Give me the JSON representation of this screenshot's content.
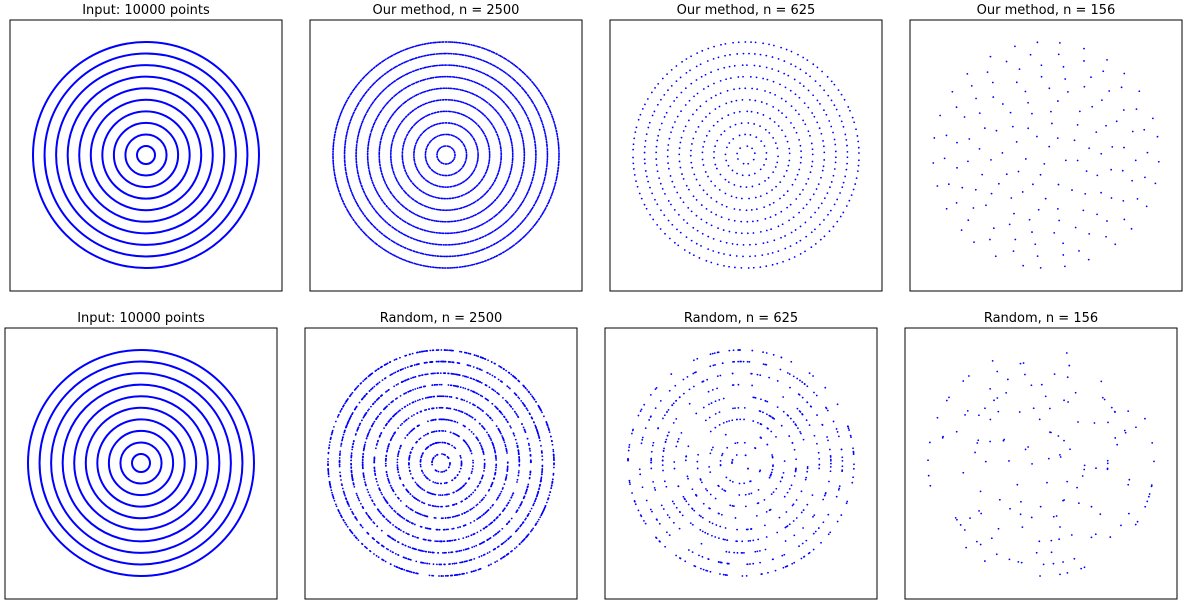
{
  "colors": {
    "points": "#0000ff",
    "frame": "#000000",
    "background": "#ffffff"
  },
  "chart_data": [
    {
      "type": "scatter",
      "title": "Input: 10000 points",
      "n": 10000,
      "rings": 10,
      "xlabel": "",
      "ylabel": "",
      "grid": false
    },
    {
      "type": "scatter",
      "title": "Our method, n = 2500",
      "n": 2500,
      "rings": 10,
      "xlabel": "",
      "ylabel": "",
      "grid": false
    },
    {
      "type": "scatter",
      "title": "Our method, n = 625",
      "n": 625,
      "rings": 10,
      "xlabel": "",
      "ylabel": "",
      "grid": false
    },
    {
      "type": "scatter",
      "title": "Our method, n = 156",
      "n": 156,
      "rings": 10,
      "xlabel": "",
      "ylabel": "",
      "grid": false
    },
    {
      "type": "scatter",
      "title": "Input: 10000 points",
      "n": 10000,
      "rings": 10,
      "xlabel": "",
      "ylabel": "",
      "grid": false
    },
    {
      "type": "scatter",
      "title": "Random, n = 2500",
      "n": 2500,
      "rings": 10,
      "xlabel": "",
      "ylabel": "",
      "grid": false
    },
    {
      "type": "scatter",
      "title": "Random, n = 625",
      "n": 625,
      "rings": 10,
      "xlabel": "",
      "ylabel": "",
      "grid": false
    },
    {
      "type": "scatter",
      "title": "Random, n = 156",
      "n": 156,
      "rings": 10,
      "xlabel": "",
      "ylabel": "",
      "grid": false
    }
  ]
}
